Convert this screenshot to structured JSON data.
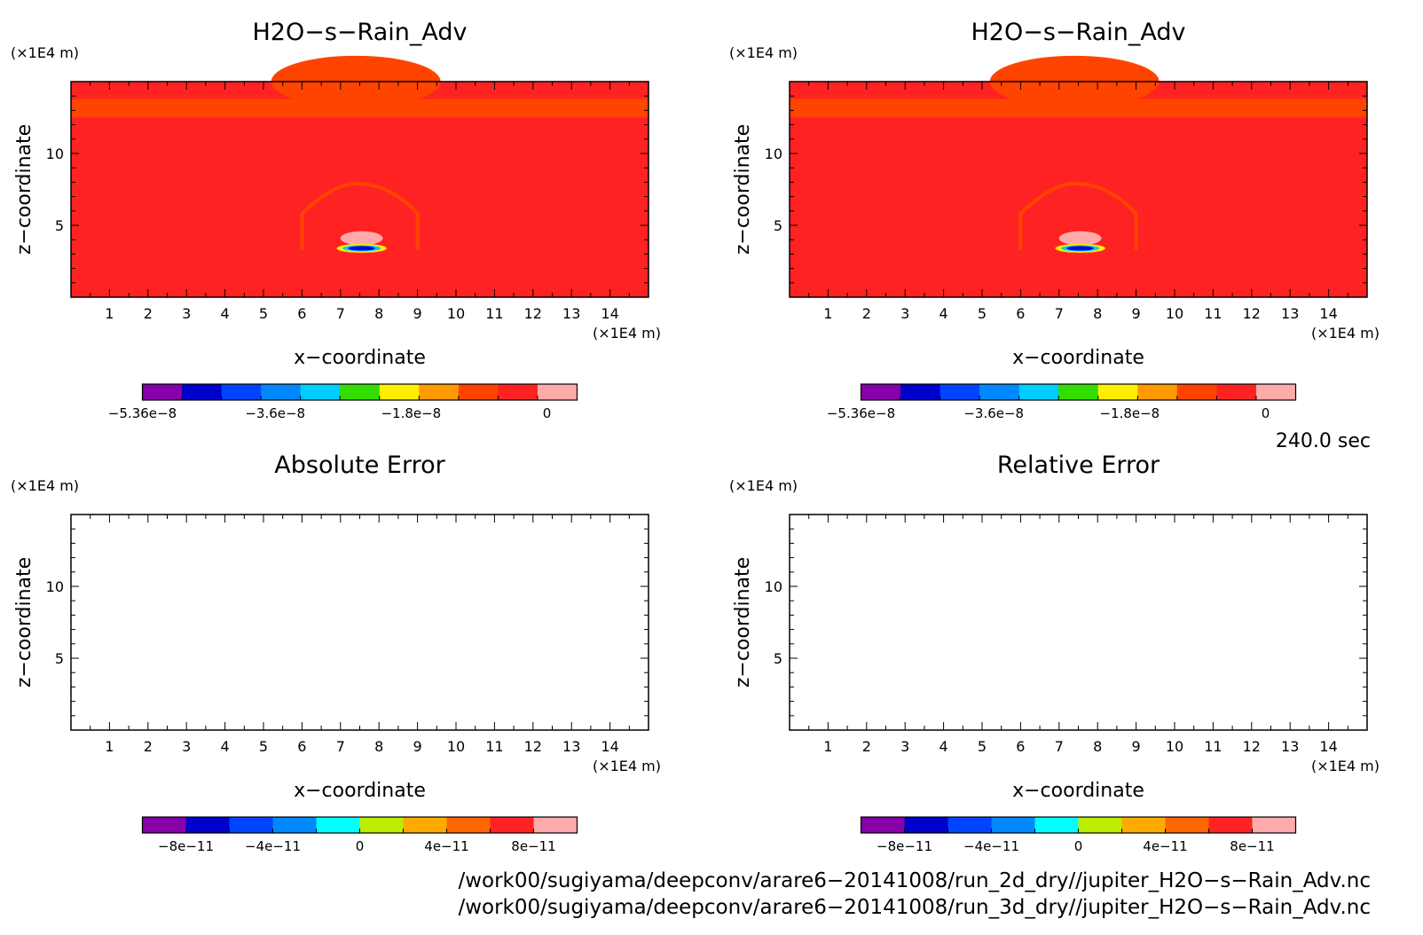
{
  "chart_data": [
    {
      "type": "heatmap",
      "title": "H2O−s−Rain_Adv",
      "xlabel": "x−coordinate",
      "ylabel": "z−coordinate",
      "x_unit": "(×1E4 m)",
      "y_unit": "(×1E4 m)",
      "xlim": [
        0,
        15
      ],
      "ylim": [
        0,
        15
      ],
      "x_ticks": [
        "1",
        "2",
        "3",
        "4",
        "5",
        "6",
        "7",
        "8",
        "9",
        "10",
        "11",
        "12",
        "13",
        "14"
      ],
      "y_ticks": [
        "5",
        "10"
      ],
      "colorbar": {
        "min": -5.36e-08,
        "max": 4e-09,
        "tick_labels": [
          "−5.36e−8",
          "−3.6e−8",
          "−1.8e−8",
          "0"
        ],
        "tick_values": [
          -5.36e-08,
          -3.6e-08,
          -1.8e-08,
          0
        ],
        "colors": [
          "#8800aa",
          "#0000cc",
          "#0044ff",
          "#0088ff",
          "#00ccff",
          "#33dd00",
          "#ffee00",
          "#ff9900",
          "#ff4400",
          "#ff2222",
          "#ffaaaa"
        ]
      },
      "field_description_values": {
        "background": 0,
        "upper_band": -2e-09,
        "bubble_core_min": -5.36e-08,
        "cap": 2e-09
      }
    },
    {
      "type": "heatmap",
      "title": "H2O−s−Rain_Adv",
      "xlabel": "x−coordinate",
      "ylabel": "z−coordinate",
      "x_unit": "(×1E4 m)",
      "y_unit": "(×1E4 m)",
      "xlim": [
        0,
        15
      ],
      "ylim": [
        0,
        15
      ],
      "x_ticks": [
        "1",
        "2",
        "3",
        "4",
        "5",
        "6",
        "7",
        "8",
        "9",
        "10",
        "11",
        "12",
        "13",
        "14"
      ],
      "y_ticks": [
        "5",
        "10"
      ],
      "colorbar": {
        "min": -5.36e-08,
        "max": 4e-09,
        "tick_labels": [
          "−5.36e−8",
          "−3.6e−8",
          "−1.8e−8",
          "0"
        ],
        "tick_values": [
          -5.36e-08,
          -3.6e-08,
          -1.8e-08,
          0
        ],
        "colors": [
          "#8800aa",
          "#0000cc",
          "#0044ff",
          "#0088ff",
          "#00ccff",
          "#33dd00",
          "#ffee00",
          "#ff9900",
          "#ff4400",
          "#ff2222",
          "#ffaaaa"
        ]
      }
    },
    {
      "type": "heatmap",
      "title": "Absolute Error",
      "xlabel": "x−coordinate",
      "ylabel": "z−coordinate",
      "x_unit": "(×1E4 m)",
      "y_unit": "(×1E4 m)",
      "xlim": [
        0,
        15
      ],
      "ylim": [
        0,
        15
      ],
      "x_ticks": [
        "1",
        "2",
        "3",
        "4",
        "5",
        "6",
        "7",
        "8",
        "9",
        "10",
        "11",
        "12",
        "13",
        "14"
      ],
      "y_ticks": [
        "5",
        "10"
      ],
      "colorbar": {
        "min": -1e-10,
        "max": 1e-10,
        "tick_labels": [
          "−8e−11",
          "−4e−11",
          "0",
          "4e−11",
          "8e−11"
        ],
        "tick_values": [
          -8e-11,
          -4e-11,
          0,
          4e-11,
          8e-11
        ],
        "colors": [
          "#8800aa",
          "#0000cc",
          "#0044ff",
          "#0088ff",
          "#00ffff",
          "#bbee00",
          "#ffaa00",
          "#ff6600",
          "#ff2222",
          "#ffaaaa"
        ]
      }
    },
    {
      "type": "heatmap",
      "title": "Relative Error",
      "xlabel": "x−coordinate",
      "ylabel": "z−coordinate",
      "x_unit": "(×1E4 m)",
      "y_unit": "(×1E4 m)",
      "xlim": [
        0,
        15
      ],
      "ylim": [
        0,
        15
      ],
      "x_ticks": [
        "1",
        "2",
        "3",
        "4",
        "5",
        "6",
        "7",
        "8",
        "9",
        "10",
        "11",
        "12",
        "13",
        "14"
      ],
      "y_ticks": [
        "5",
        "10"
      ],
      "colorbar": {
        "min": -1e-10,
        "max": 1e-10,
        "tick_labels": [
          "−8e−11",
          "−4e−11",
          "0",
          "4e−11",
          "8e−11"
        ],
        "tick_values": [
          -8e-11,
          -4e-11,
          0,
          4e-11,
          8e-11
        ],
        "colors": [
          "#8800aa",
          "#0000cc",
          "#0044ff",
          "#0088ff",
          "#00ffff",
          "#bbee00",
          "#ffaa00",
          "#ff6600",
          "#ff2222",
          "#ffaaaa"
        ]
      }
    }
  ],
  "time_label": "240.0 sec",
  "footer": [
    "/work00/sugiyama/deepconv/arare6−20141008/run_2d_dry//jupiter_H2O−s−Rain_Adv.nc",
    "/work00/sugiyama/deepconv/arare6−20141008/run_3d_dry//jupiter_H2O−s−Rain_Adv.nc"
  ]
}
